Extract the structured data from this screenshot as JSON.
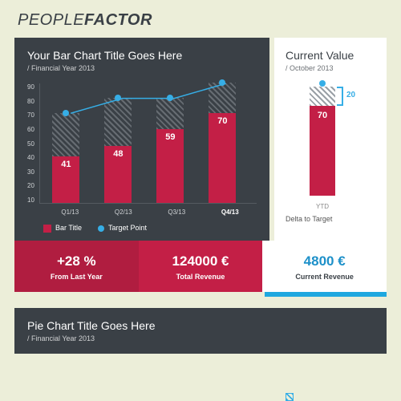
{
  "brand": {
    "part1": "PEOPLE",
    "part2": "FACTOR"
  },
  "bar_chart": {
    "title": "Your Bar Chart Title Goes Here",
    "subtitle": "/ Financial Year 2013",
    "ymin": 10,
    "ymax": 90,
    "ystep": 10,
    "categories": [
      "Q1/13",
      "Q2/13",
      "Q3/13",
      "Q4/13"
    ],
    "selected_index": 3,
    "bars": [
      41,
      48,
      59,
      70
    ],
    "target": [
      70,
      80,
      80,
      90
    ],
    "bar_color": "#c31f46",
    "target_color": "#36aee6",
    "legend_bar": "Bar Title",
    "legend_target": "Target Point"
  },
  "current": {
    "title": "Current Value",
    "subtitle": "/ October 2013",
    "bar": 70,
    "target": 90,
    "delta": 20,
    "xlabel": "YTD",
    "legend": "Delta to Target"
  },
  "stats": {
    "a_val": "+28 %",
    "a_lbl": "From Last Year",
    "b_val": "124000 €",
    "b_lbl": "Total Revenue",
    "c_val": "4800 €",
    "c_lbl": "Current Revenue"
  },
  "pie": {
    "title": "Pie Chart Title Goes Here",
    "subtitle": "/ Financial Year 2013"
  }
}
